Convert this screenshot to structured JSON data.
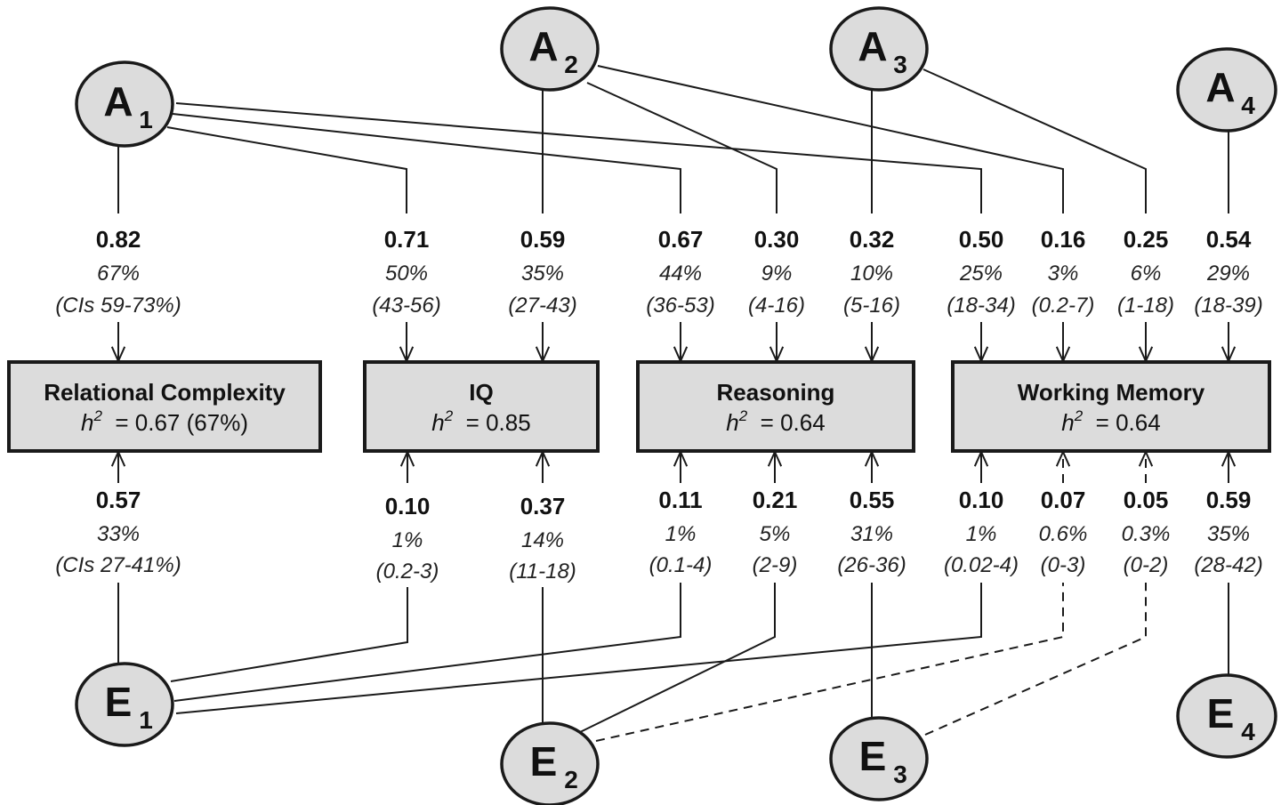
{
  "factors": [
    {
      "id": "A1",
      "letter": "A",
      "sub": "1"
    },
    {
      "id": "A2",
      "letter": "A",
      "sub": "2"
    },
    {
      "id": "A3",
      "letter": "A",
      "sub": "3"
    },
    {
      "id": "A4",
      "letter": "A",
      "sub": "4"
    },
    {
      "id": "E1",
      "letter": "E",
      "sub": "1"
    },
    {
      "id": "E2",
      "letter": "E",
      "sub": "2"
    },
    {
      "id": "E3",
      "letter": "E",
      "sub": "3"
    },
    {
      "id": "E4",
      "letter": "E",
      "sub": "4"
    }
  ],
  "measures": [
    {
      "id": "rc",
      "title": "Relational Complexity",
      "h2_prefix": "h",
      "h2_sup": "2",
      "h2_value": " = 0.67 (67%)"
    },
    {
      "id": "iq",
      "title": "IQ",
      "h2_prefix": "h",
      "h2_sup": "2",
      "h2_value": " = 0.85"
    },
    {
      "id": "reasoning",
      "title": "Reasoning",
      "h2_prefix": "h",
      "h2_sup": "2",
      "h2_value": " = 0.64"
    },
    {
      "id": "wm",
      "title": "Working Memory",
      "h2_prefix": "h",
      "h2_sup": "2",
      "h2_value": " = 0.64"
    }
  ],
  "a_paths": [
    {
      "from": "A1",
      "to": "rc",
      "coef": "0.82",
      "pct": "67%",
      "ci": "(CIs 59-73%)"
    },
    {
      "from": "A1",
      "to": "iq",
      "coef": "0.71",
      "pct": "50%",
      "ci": "(43-56)"
    },
    {
      "from": "A2",
      "to": "iq",
      "coef": "0.59",
      "pct": "35%",
      "ci": "(27-43)"
    },
    {
      "from": "A1",
      "to": "reasoning",
      "coef": "0.67",
      "pct": "44%",
      "ci": "(36-53)"
    },
    {
      "from": "A2",
      "to": "reasoning",
      "coef": "0.30",
      "pct": "9%",
      "ci": "(4-16)"
    },
    {
      "from": "A3",
      "to": "reasoning",
      "coef": "0.32",
      "pct": "10%",
      "ci": "(5-16)"
    },
    {
      "from": "A1",
      "to": "wm",
      "coef": "0.50",
      "pct": "25%",
      "ci": "(18-34)"
    },
    {
      "from": "A2",
      "to": "wm",
      "coef": "0.16",
      "pct": "3%",
      "ci": "(0.2-7)"
    },
    {
      "from": "A3",
      "to": "wm",
      "coef": "0.25",
      "pct": "6%",
      "ci": "(1-18)"
    },
    {
      "from": "A4",
      "to": "wm",
      "coef": "0.54",
      "pct": "29%",
      "ci": "(18-39)"
    }
  ],
  "e_paths": [
    {
      "from": "E1",
      "to": "rc",
      "coef": "0.57",
      "pct": "33%",
      "ci": "(CIs 27-41%)"
    },
    {
      "from": "E1",
      "to": "iq",
      "coef": "0.10",
      "pct": "1%",
      "ci": "(0.2-3)"
    },
    {
      "from": "E2",
      "to": "iq",
      "coef": "0.37",
      "pct": "14%",
      "ci": "(11-18)"
    },
    {
      "from": "E1",
      "to": "reasoning",
      "coef": "0.11",
      "pct": "1%",
      "ci": "(0.1-4)"
    },
    {
      "from": "E2",
      "to": "reasoning",
      "coef": "0.21",
      "pct": "5%",
      "ci": "(2-9)"
    },
    {
      "from": "E3",
      "to": "reasoning",
      "coef": "0.55",
      "pct": "31%",
      "ci": "(26-36)"
    },
    {
      "from": "E1",
      "to": "wm",
      "coef": "0.10",
      "pct": "1%",
      "ci": "(0.02-4)"
    },
    {
      "from": "E2",
      "to": "wm",
      "coef": "0.07",
      "pct": "0.6%",
      "ci": "(0-3)",
      "dashed": true
    },
    {
      "from": "E3",
      "to": "wm",
      "coef": "0.05",
      "pct": "0.3%",
      "ci": "(0-2)",
      "dashed": true
    },
    {
      "from": "E4",
      "to": "wm",
      "coef": "0.59",
      "pct": "35%",
      "ci": "(28-42)"
    }
  ]
}
